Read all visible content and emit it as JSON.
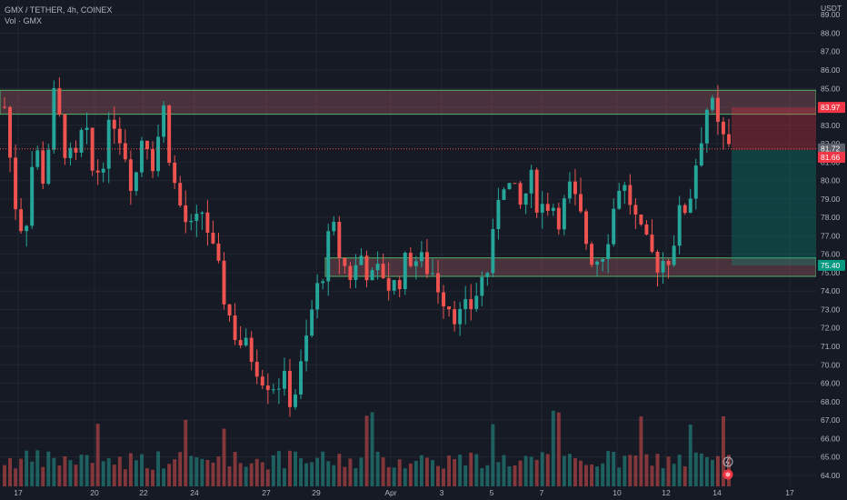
{
  "header": {
    "symbol_line": "GMX / TETHER, 4h, COINEX",
    "volume_line": "Vol · GMX"
  },
  "colors": {
    "background": "#161a25",
    "up": "#26a69a",
    "down": "#ef5350",
    "grid": "#232632",
    "zone_fill": "#8a4f5b",
    "zone_border": "#53b26a",
    "short_red": "#f23645",
    "short_green": "#089981"
  },
  "chart_data": {
    "type": "candlestick",
    "ylabel": "USDT",
    "ylim": [
      63.4,
      89.8
    ],
    "y_ticks": [
      64,
      65,
      66,
      67,
      68,
      69,
      70,
      71,
      72,
      73,
      74,
      75,
      76,
      77,
      78,
      79,
      80,
      81,
      82,
      83,
      84,
      85,
      86,
      87,
      88,
      89
    ],
    "x_tick_labels": [
      "17",
      "20",
      "22",
      "24",
      "27",
      "29",
      "Apr",
      "3",
      "5",
      "7",
      "10",
      "12",
      "14",
      "17"
    ],
    "price_zones": [
      {
        "low": 83.6,
        "high": 84.9
      },
      {
        "low": 74.8,
        "high": 75.8
      }
    ],
    "position": {
      "kind": "short",
      "stop": 83.97,
      "entry": 81.66,
      "target": 75.4
    },
    "price_labels": [
      {
        "text": "83.97",
        "value": 83.97,
        "color": "#f23645"
      },
      {
        "text": "81.72",
        "value": 81.72,
        "color": "#5d606b"
      },
      {
        "text": "81.66",
        "value": 81.66,
        "color": "#f23645"
      },
      {
        "text": "75.40",
        "value": 75.4,
        "color": "#089981"
      }
    ],
    "candle_anchors": [
      84.0,
      79.0,
      77.0,
      82.0,
      80.0,
      84.5,
      82.0,
      80.5,
      83.0,
      80.0,
      81.5,
      83.5,
      82.0,
      79.5,
      83.0,
      81.0,
      84.0,
      80.0,
      78.0,
      77.0,
      78.5,
      76.0,
      74.0,
      72.0,
      71.0,
      70.5,
      69.5,
      69.0,
      69.2,
      68.0,
      70.0,
      73.0,
      75.0,
      77.5,
      75.5,
      74.8,
      76.0,
      74.5,
      75.2,
      74.0,
      75.0,
      76.0,
      75.5,
      75.2,
      74.0,
      73.2,
      72.5,
      73.2,
      74.5,
      75.5,
      80.5,
      79.5,
      78.5,
      80.0,
      78.5,
      79.0,
      78.0,
      79.5,
      78.0,
      76.0,
      75.8,
      77.5,
      80.0,
      79.0,
      77.0,
      76.0,
      75.5,
      76.0,
      78.0,
      79.0,
      82.0,
      84.5,
      82.5,
      81.7
    ]
  }
}
